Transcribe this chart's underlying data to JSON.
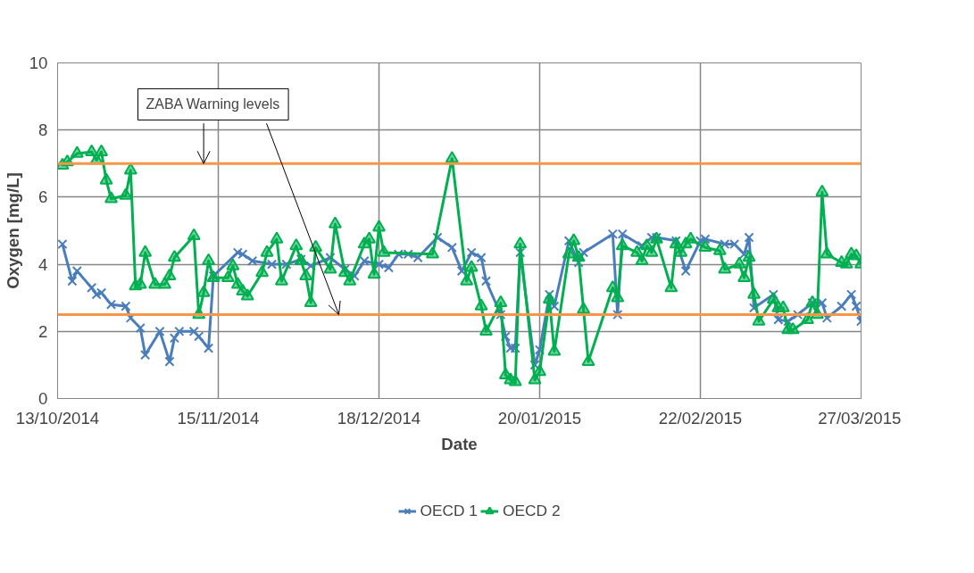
{
  "chart_data": {
    "type": "line",
    "xlabel": "Date",
    "ylabel": "Oxygen [mg/L]",
    "annotations": [
      {
        "text": "ZABA Warning levels",
        "x": "2014-11-12",
        "y": 7
      }
    ],
    "xlim": [
      "2014-10-13",
      "2015-03-27"
    ],
    "xticks": [
      {
        "value": "2014-10-13",
        "label": "13/10/2014"
      },
      {
        "value": "2014-11-15",
        "label": "15/11/2014"
      },
      {
        "value": "2014-12-18",
        "label": "18/12/2014"
      },
      {
        "value": "2015-01-20",
        "label": "20/01/2015"
      },
      {
        "value": "2015-02-22",
        "label": "22/02/2015"
      },
      {
        "value": "2015-03-27",
        "label": "27/03/2015"
      }
    ],
    "ylim": [
      0,
      10
    ],
    "yticks": [
      0,
      2,
      4,
      6,
      8,
      10
    ],
    "grid": true,
    "legend": "bottom",
    "ref_lines": [
      {
        "axis": "y",
        "value": 7,
        "color": "#f79646"
      },
      {
        "axis": "y",
        "value": 2.5,
        "color": "#f79646"
      }
    ],
    "series": [
      {
        "name": "OECD 1",
        "color": "#4a7ebb",
        "marker": "cross",
        "x": [
          "2014-10-14",
          "2014-10-16",
          "2014-10-17",
          "2014-10-20",
          "2014-10-21",
          "2014-10-22",
          "2014-10-24",
          "2014-10-27",
          "2014-10-28",
          "2014-10-30",
          "2014-10-31",
          "2014-11-03",
          "2014-11-05",
          "2014-11-06",
          "2014-11-07",
          "2014-11-10",
          "2014-11-11",
          "2014-11-13",
          "2014-11-14",
          "2014-11-19",
          "2014-11-20",
          "2014-11-22",
          "2014-11-26",
          "2014-11-29",
          "2014-12-02",
          "2014-12-04",
          "2014-12-08",
          "2014-12-11",
          "2014-12-13",
          "2014-12-15",
          "2014-12-18",
          "2014-12-20",
          "2014-12-22",
          "2014-12-24",
          "2014-12-26",
          "2014-12-30",
          "2015-01-02",
          "2015-01-04",
          "2015-01-06",
          "2015-01-08",
          "2015-01-09",
          "2015-01-12",
          "2015-01-13",
          "2015-01-14",
          "2015-01-15",
          "2015-01-16",
          "2015-01-19",
          "2015-01-20",
          "2015-01-22",
          "2015-01-23",
          "2015-01-26",
          "2015-01-28",
          "2015-01-29",
          "2015-02-04",
          "2015-02-05",
          "2015-02-06",
          "2015-02-10",
          "2015-02-12",
          "2015-02-13",
          "2015-02-17",
          "2015-02-19",
          "2015-02-22",
          "2015-02-23",
          "2015-02-27",
          "2015-03-01",
          "2015-03-03",
          "2015-03-04",
          "2015-03-05",
          "2015-03-09",
          "2015-03-10",
          "2015-03-12",
          "2015-03-14",
          "2015-03-17",
          "2015-03-19",
          "2015-03-20",
          "2015-03-23",
          "2015-03-25",
          "2015-03-26",
          "2015-03-27"
        ],
        "values": [
          4.6,
          3.5,
          3.8,
          3.3,
          3.1,
          3.15,
          2.8,
          2.75,
          2.4,
          2.1,
          1.3,
          2.0,
          1.1,
          1.8,
          2.0,
          2.0,
          1.85,
          1.5,
          3.65,
          4.35,
          4.3,
          4.1,
          4.0,
          4.0,
          4.15,
          3.95,
          4.2,
          3.85,
          3.65,
          4.1,
          4.0,
          3.9,
          4.3,
          4.3,
          4.2,
          4.8,
          4.5,
          3.8,
          4.35,
          4.2,
          3.5,
          2.5,
          1.85,
          1.5,
          1.5,
          4.35,
          1.0,
          1.45,
          3.1,
          2.75,
          4.7,
          4.05,
          4.35,
          4.9,
          2.5,
          4.9,
          4.55,
          4.8,
          4.8,
          4.7,
          3.8,
          4.7,
          4.75,
          4.6,
          4.6,
          4.3,
          4.8,
          2.7,
          3.1,
          2.35,
          2.3,
          2.5,
          2.85,
          2.85,
          2.4,
          2.75,
          3.1,
          2.75,
          2.3
        ]
      },
      {
        "name": "OECD 2",
        "color": "#00b050",
        "marker": "triangle",
        "x": [
          "2014-10-14",
          "2014-10-15",
          "2014-10-17",
          "2014-10-20",
          "2014-10-21",
          "2014-10-22",
          "2014-10-23",
          "2014-10-24",
          "2014-10-27",
          "2014-10-28",
          "2014-10-29",
          "2014-10-30",
          "2014-10-31",
          "2014-11-02",
          "2014-11-04",
          "2014-11-05",
          "2014-11-06",
          "2014-11-10",
          "2014-11-11",
          "2014-11-12",
          "2014-11-13",
          "2014-11-14",
          "2014-11-17",
          "2014-11-18",
          "2014-11-19",
          "2014-11-20",
          "2014-11-21",
          "2014-11-24",
          "2014-11-25",
          "2014-11-27",
          "2014-11-28",
          "2014-12-01",
          "2014-12-02",
          "2014-12-03",
          "2014-12-04",
          "2014-12-05",
          "2014-12-08",
          "2014-12-09",
          "2014-12-11",
          "2014-12-12",
          "2014-12-15",
          "2014-12-16",
          "2014-12-17",
          "2014-12-18",
          "2014-12-19",
          "2014-12-29",
          "2015-01-02",
          "2015-01-05",
          "2015-01-06",
          "2015-01-08",
          "2015-01-09",
          "2015-01-12",
          "2015-01-13",
          "2015-01-14",
          "2015-01-15",
          "2015-01-16",
          "2015-01-19",
          "2015-01-20",
          "2015-01-22",
          "2015-01-23",
          "2015-01-26",
          "2015-01-27",
          "2015-01-28",
          "2015-01-29",
          "2015-01-30",
          "2015-02-04",
          "2015-02-05",
          "2015-02-06",
          "2015-02-09",
          "2015-02-10",
          "2015-02-11",
          "2015-02-12",
          "2015-02-13",
          "2015-02-16",
          "2015-02-17",
          "2015-02-18",
          "2015-02-19",
          "2015-02-20",
          "2015-02-23",
          "2015-02-26",
          "2015-02-27",
          "2015-03-02",
          "2015-03-03",
          "2015-03-04",
          "2015-03-05",
          "2015-03-06",
          "2015-03-09",
          "2015-03-10",
          "2015-03-11",
          "2015-03-12",
          "2015-03-13",
          "2015-03-16",
          "2015-03-17",
          "2015-03-18",
          "2015-03-19",
          "2015-03-20",
          "2015-03-23",
          "2015-03-24",
          "2015-03-25",
          "2015-03-26",
          "2015-03-27"
        ],
        "values": [
          6.95,
          7.05,
          7.3,
          7.35,
          7.1,
          7.35,
          6.5,
          5.95,
          6.05,
          6.8,
          3.35,
          3.4,
          4.35,
          3.4,
          3.4,
          3.65,
          4.2,
          4.85,
          2.5,
          3.15,
          4.1,
          3.6,
          3.6,
          3.95,
          3.4,
          3.2,
          3.05,
          3.75,
          4.35,
          4.75,
          3.5,
          4.55,
          4.1,
          3.65,
          2.85,
          4.5,
          3.85,
          5.2,
          3.75,
          3.5,
          4.6,
          4.75,
          3.7,
          5.1,
          4.35,
          4.3,
          7.15,
          3.5,
          3.9,
          2.75,
          2.0,
          2.85,
          0.7,
          0.55,
          0.5,
          4.6,
          0.55,
          0.8,
          2.95,
          1.4,
          4.3,
          4.7,
          4.2,
          2.65,
          1.1,
          3.3,
          3.0,
          4.55,
          4.35,
          4.1,
          4.55,
          4.35,
          4.75,
          3.3,
          4.6,
          4.35,
          4.6,
          4.75,
          4.5,
          4.4,
          3.85,
          4.0,
          3.6,
          4.2,
          3.1,
          2.3,
          2.95,
          2.7,
          2.7,
          2.05,
          2.05,
          2.35,
          2.85,
          2.5,
          6.15,
          4.3,
          4.05,
          4.0,
          4.3,
          4.25,
          4.0
        ]
      }
    ]
  }
}
